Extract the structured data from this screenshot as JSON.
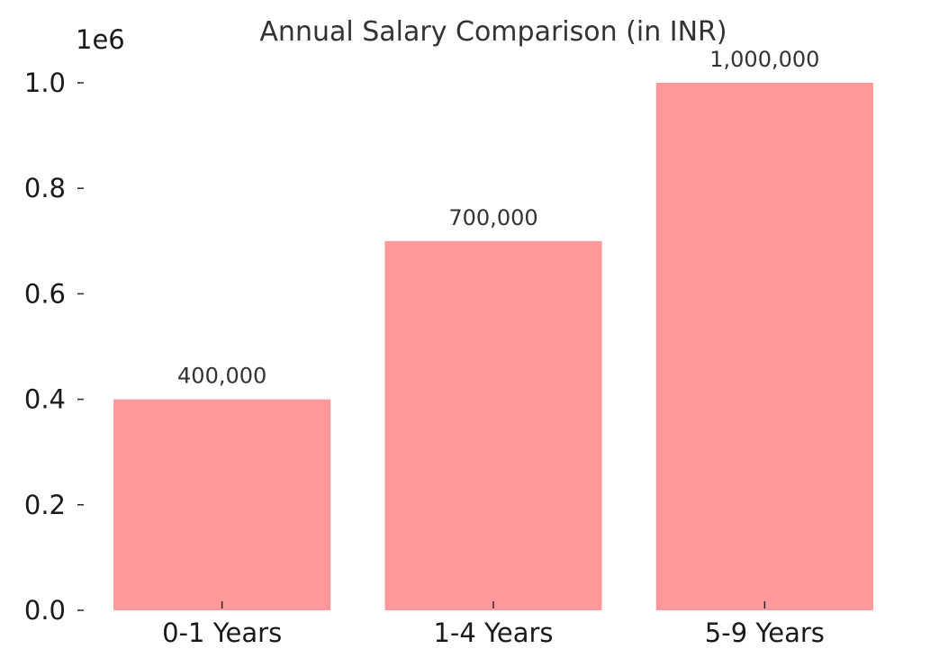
{
  "chart_data": {
    "type": "bar",
    "title": "Annual Salary Comparison (in INR)",
    "xlabel": "",
    "ylabel": "",
    "categories": [
      "0-1 Years",
      "1-4 Years",
      "5-9 Years"
    ],
    "values": [
      400000,
      700000,
      1000000
    ],
    "data_labels": [
      "400,000",
      "700,000",
      "1,000,000"
    ],
    "ylim": [
      0,
      1000000
    ],
    "y_ticks": [
      0,
      200000,
      400000,
      600000,
      800000,
      1000000
    ],
    "y_tick_labels": [
      "0.0",
      "0.2",
      "0.4",
      "0.6",
      "0.8",
      "1.0"
    ],
    "y_offset_label": "1e6",
    "grid": false,
    "bar_color": "#ff9999"
  }
}
